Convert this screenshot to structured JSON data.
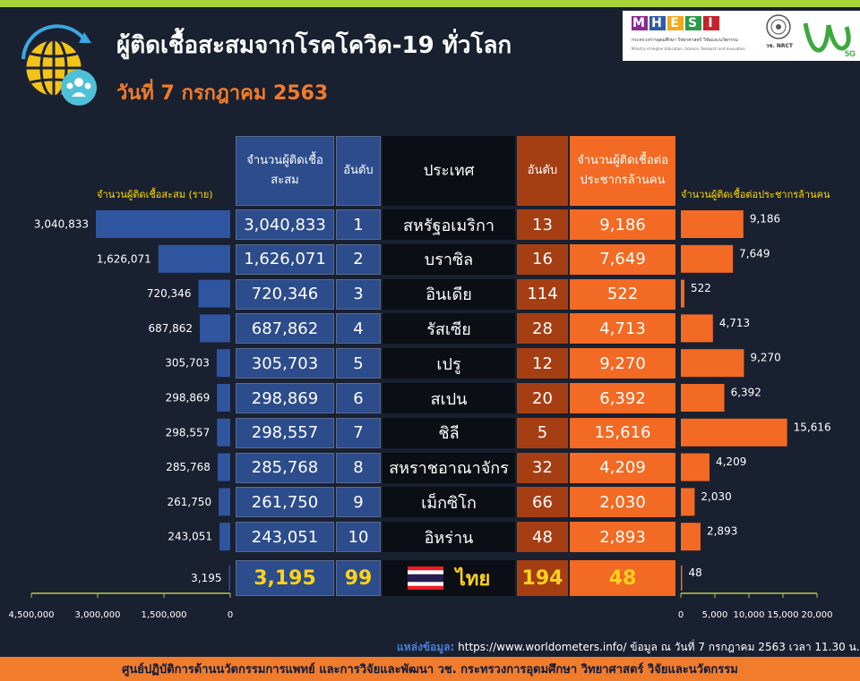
{
  "header": {
    "title": "ผู้ติดเชื้อสะสมจากโรคโควิด-19 ทั่วโลก",
    "subtitle": "วันที่ 7 กรกฎาคม 2563"
  },
  "logos": {
    "mhesi_letters": [
      "M",
      "H",
      "E",
      "S",
      "I"
    ],
    "mhesi_colors": [
      "#8b2a8f",
      "#2e5aa8",
      "#f2a81b",
      "#2c9a4b",
      "#c6232b"
    ],
    "mhesi_text_th": "กระทรวงการอุดมศึกษา วิทยาศาสตร์ วิจัยและนวัตกรรม",
    "mhesi_text_en": "Ministry of Higher Education, Science, Research and Innovation",
    "nrct_label": "วช. NRCT",
    "v5g_label": "5G"
  },
  "table": {
    "headers": {
      "cases": "จำนวนผู้ติดเชื้อสะสม",
      "rank": "อันดับ",
      "country": "ประเทศ",
      "rank2": "อันดับ",
      "per_million": "จำนวนผู้ติดเชื้อต่อประชากรล้านคน"
    },
    "rows": [
      {
        "cases": "3,040,833",
        "rank": "1",
        "country": "สหรัฐอเมริกา",
        "rank2": "13",
        "per_million": "9,186"
      },
      {
        "cases": "1,626,071",
        "rank": "2",
        "country": "บราซิล",
        "rank2": "16",
        "per_million": "7,649"
      },
      {
        "cases": "720,346",
        "rank": "3",
        "country": "อินเดีย",
        "rank2": "114",
        "per_million": "522"
      },
      {
        "cases": "687,862",
        "rank": "4",
        "country": "รัสเซีย",
        "rank2": "28",
        "per_million": "4,713"
      },
      {
        "cases": "305,703",
        "rank": "5",
        "country": "เปรู",
        "rank2": "12",
        "per_million": "9,270"
      },
      {
        "cases": "298,869",
        "rank": "6",
        "country": "สเปน",
        "rank2": "20",
        "per_million": "6,392"
      },
      {
        "cases": "298,557",
        "rank": "7",
        "country": "ชิลี",
        "rank2": "5",
        "per_million": "15,616"
      },
      {
        "cases": "285,768",
        "rank": "8",
        "country": "สหราชอาณาจักร",
        "rank2": "32",
        "per_million": "4,209"
      },
      {
        "cases": "261,750",
        "rank": "9",
        "country": "เม็กซิโก",
        "rank2": "66",
        "per_million": "2,030"
      },
      {
        "cases": "243,051",
        "rank": "10",
        "country": "อิหร่าน",
        "rank2": "48",
        "per_million": "2,893"
      }
    ],
    "thai_row": {
      "cases": "3,195",
      "rank": "99",
      "country": "ไทย",
      "rank2": "194",
      "per_million": "48"
    }
  },
  "chart_data": [
    {
      "type": "bar",
      "title": "จำนวนผู้ติดเชื้อสะสม (ราย)",
      "orientation": "horizontal-left",
      "categories": [
        "สหรัฐอเมริกา",
        "บราซิล",
        "อินเดีย",
        "รัสเซีย",
        "เปรู",
        "สเปน",
        "ชิลี",
        "สหราชอาณาจักร",
        "เม็กซิโก",
        "อิหร่าน",
        "ไทย"
      ],
      "values": [
        3040833,
        1626071,
        720346,
        687862,
        305703,
        298869,
        298557,
        285768,
        261750,
        243051,
        3195
      ],
      "value_labels": [
        "3,040,833",
        "1,626,071",
        "720,346",
        "687,862",
        "305,703",
        "298,869",
        "298,557",
        "285,768",
        "261,750",
        "243,051",
        "3,195"
      ],
      "xlim": [
        0,
        4500000
      ],
      "ticks": [
        "4,500,000",
        "3,000,000",
        "1,500,000",
        "0"
      ],
      "tick_values": [
        4500000,
        3000000,
        1500000,
        0
      ],
      "color": "#2f55a0"
    },
    {
      "type": "bar",
      "title": "จำนวนผู้ติดเชื้อต่อประชากรล้านคน",
      "orientation": "horizontal-right",
      "categories": [
        "สหรัฐอเมริกา",
        "บราซิล",
        "อินเดีย",
        "รัสเซีย",
        "เปรู",
        "สเปน",
        "ชิลี",
        "สหราชอาณาจักร",
        "เม็กซิโก",
        "อิหร่าน",
        "ไทย"
      ],
      "values": [
        9186,
        7649,
        522,
        4713,
        9270,
        6392,
        15616,
        4209,
        2030,
        2893,
        48
      ],
      "value_labels": [
        "9,186",
        "7,649",
        "522",
        "4,713",
        "9,270",
        "6,392",
        "15,616",
        "4,209",
        "2,030",
        "2,893",
        "48"
      ],
      "xlim": [
        0,
        20000
      ],
      "ticks": [
        "0",
        "5,000",
        "10,000",
        "15,000",
        "20,000"
      ],
      "tick_values": [
        0,
        5000,
        10000,
        15000,
        20000
      ],
      "color": "#f26a23"
    }
  ],
  "source": {
    "label": "แหล่งข้อมูล:",
    "text": " https://www.worldometers.info/ ข้อมูล ณ วันที่ 7 กรกฎาคม 2563 เวลา 11.30 น."
  },
  "footer": "ศูนย์ปฏิบัติการด้านนวัตกรรมการแพทย์ และการวิจัยและพัฒนา วช. กระทรวงการอุดมศึกษา วิทยาศาสตร์ วิจัยและนวัตกรรม"
}
